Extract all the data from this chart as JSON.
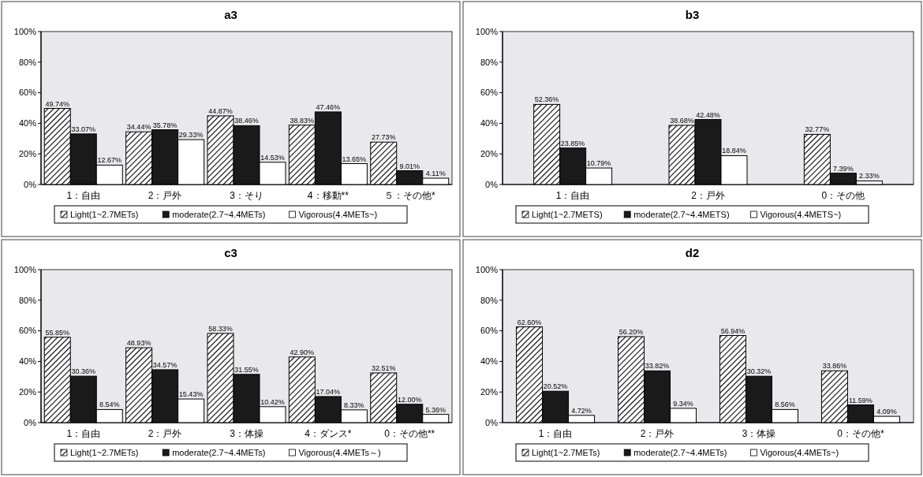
{
  "chart_data": [
    {
      "type": "bar",
      "title": "a3",
      "categories": [
        "1：自由",
        "2：戸外",
        "3：そり",
        "4：移動**",
        "５：その他*"
      ],
      "ylim": [
        0,
        100
      ],
      "yticks": [
        {
          "value": 0,
          "label": "0%"
        },
        {
          "value": 20,
          "label": "20%"
        },
        {
          "value": 40,
          "label": "40%"
        },
        {
          "value": 60,
          "label": "60%"
        },
        {
          "value": 80,
          "label": "80%"
        },
        {
          "value": 100,
          "label": "100%"
        }
      ],
      "legend": "bottom",
      "series": [
        {
          "name": "Light(1~2.7METs)",
          "color": "#000000",
          "values": [
            49.74,
            34.44,
            44.87,
            38.83,
            27.73
          ],
          "value_labels": [
            "49.74%",
            "34.44%",
            "44.87%",
            "38.83%",
            "27.73%"
          ]
        },
        {
          "name": "moderate(2.7~4.4METs)",
          "color": "#1a1a1a",
          "values": [
            33.07,
            35.78,
            38.46,
            47.46,
            9.01
          ],
          "value_labels": [
            "33.07%",
            "35.78%",
            "38.46%",
            "47.46%",
            "9.01%"
          ]
        },
        {
          "name": "Vigorous(4.4METs~)",
          "color": "#ffffff",
          "values": [
            12.67,
            29.33,
            14.53,
            13.65,
            4.11
          ],
          "value_labels": [
            "12.67%",
            "29.33%",
            "14.53%",
            "13.65%",
            "4.11%"
          ]
        }
      ]
    },
    {
      "type": "bar",
      "title": "b3",
      "categories": [
        "1：自由",
        "2：戸外",
        "0：その他"
      ],
      "ylim": [
        0,
        100
      ],
      "yticks": [
        {
          "value": 0,
          "label": "0%"
        },
        {
          "value": 20,
          "label": "20%"
        },
        {
          "value": 40,
          "label": "40%"
        },
        {
          "value": 60,
          "label": "60%"
        },
        {
          "value": 80,
          "label": "80%"
        },
        {
          "value": 100,
          "label": "100%"
        }
      ],
      "legend": "bottom",
      "series": [
        {
          "name": "Light(1~2.7METS)",
          "color": "#000000",
          "values": [
            52.36,
            38.68,
            32.77
          ],
          "value_labels": [
            "52.36%",
            "38.68%",
            "32.77%"
          ]
        },
        {
          "name": "moderate(2.7~4.4METS)",
          "color": "#1a1a1a",
          "values": [
            23.85,
            42.48,
            7.39
          ],
          "value_labels": [
            "23.85%",
            "42.48%",
            "7.39%"
          ]
        },
        {
          "name": "Vigorous(4.4METS~)",
          "color": "#ffffff",
          "values": [
            10.79,
            18.84,
            2.33
          ],
          "value_labels": [
            "10.79%",
            "18.84%",
            "2.33%"
          ]
        }
      ]
    },
    {
      "type": "bar",
      "title": "c3",
      "categories": [
        "1：自由",
        "2：戸外",
        "3：体操",
        "4：ダンス*",
        "0：その他**"
      ],
      "ylim": [
        0,
        100
      ],
      "yticks": [
        {
          "value": 0,
          "label": "0%"
        },
        {
          "value": 20,
          "label": "20%"
        },
        {
          "value": 40,
          "label": "40%"
        },
        {
          "value": 60,
          "label": "60%"
        },
        {
          "value": 80,
          "label": "80%"
        },
        {
          "value": 100,
          "label": "100%"
        }
      ],
      "legend": "bottom",
      "series": [
        {
          "name": "Light(1~2.7METs)",
          "color": "#000000",
          "values": [
            55.85,
            48.93,
            58.33,
            42.9,
            32.51
          ],
          "value_labels": [
            "55.85%",
            "48.93%",
            "58.33%",
            "42.90%",
            "32.51%"
          ]
        },
        {
          "name": "moderate(2.7~4.4METs)",
          "color": "#1a1a1a",
          "values": [
            30.36,
            34.57,
            31.55,
            17.04,
            12
          ],
          "value_labels": [
            "30.36%",
            "34.57%",
            "31.55%",
            "17.04%",
            "12.00%"
          ]
        },
        {
          "name": "Vigorous(4.4METs～)",
          "color": "#ffffff",
          "values": [
            8.54,
            15.43,
            10.42,
            8.33,
            5.36
          ],
          "value_labels": [
            "8.54%",
            "15.43%",
            "10.42%",
            "8.33%",
            "5.36%"
          ]
        }
      ]
    },
    {
      "type": "bar",
      "title": "d2",
      "categories": [
        "1：自由",
        "2：戸外",
        "3：体操",
        "0：その他*"
      ],
      "ylim": [
        0,
        100
      ],
      "yticks": [
        {
          "value": 0,
          "label": "0%"
        },
        {
          "value": 20,
          "label": "20%"
        },
        {
          "value": 40,
          "label": "40%"
        },
        {
          "value": 60,
          "label": "60%"
        },
        {
          "value": 80,
          "label": "80%"
        },
        {
          "value": 100,
          "label": "100%"
        }
      ],
      "legend": "bottom",
      "series": [
        {
          "name": "Light(1~2.7METs)",
          "color": "#000000",
          "values": [
            62.6,
            56.2,
            56.94,
            33.86
          ],
          "value_labels": [
            "62.60%",
            "56.20%",
            "56.94%",
            "33.86%"
          ]
        },
        {
          "name": "moderate(2.7~4.4METs)",
          "color": "#1a1a1a",
          "values": [
            20.52,
            33.82,
            30.32,
            11.59
          ],
          "value_labels": [
            "20.52%",
            "33.82%",
            "30.32%",
            "11.59%"
          ]
        },
        {
          "name": "Vigorous(4.4METs~)",
          "color": "#ffffff",
          "values": [
            4.72,
            9.34,
            8.56,
            4.09
          ],
          "value_labels": [
            "4.72%",
            "9.34%",
            "8.56%",
            "4.09%"
          ]
        }
      ]
    }
  ]
}
